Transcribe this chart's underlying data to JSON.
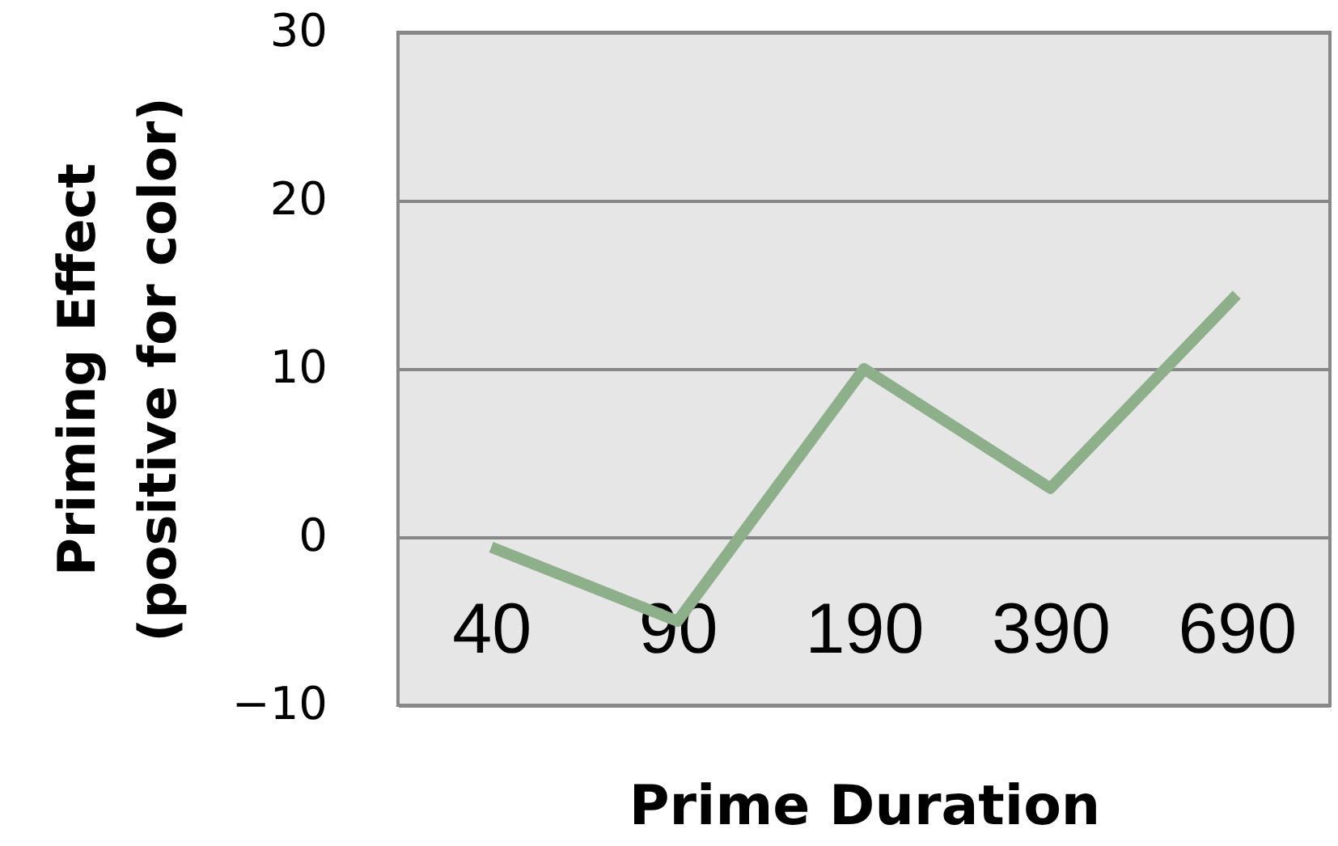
{
  "chart_data": {
    "type": "line",
    "xlabel": "Prime Duration",
    "ylabel": "Priming Effect\n(positive for color)",
    "categories": [
      "40",
      "90",
      "190",
      "390",
      "690"
    ],
    "values": [
      -0.6,
      -5.0,
      10.0,
      2.9,
      14.4
    ],
    "color": "#8db08a",
    "ylim": [
      -10,
      30
    ],
    "yticks": [
      -10,
      0,
      10,
      20,
      30
    ],
    "grid": "y"
  }
}
